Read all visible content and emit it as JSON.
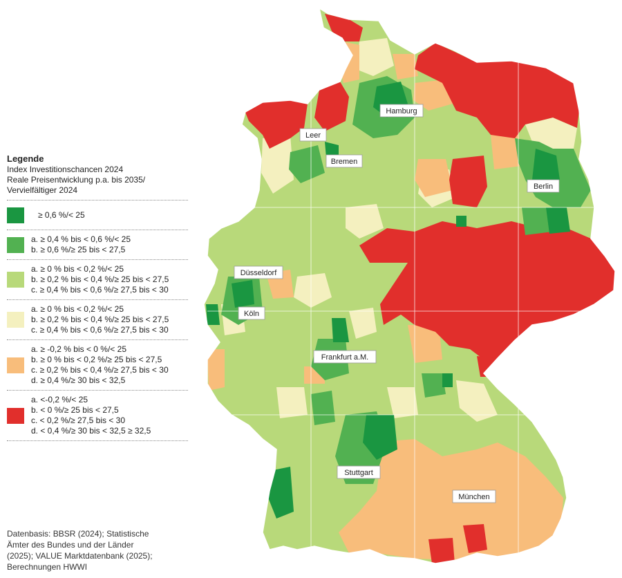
{
  "legend": {
    "heading": "Legende",
    "subtitle_lines": [
      "Index Investitionschancen 2024",
      "Reale Preisentwicklung p.a. bis 2035/",
      "Vervielfältiger 2024"
    ],
    "classes": [
      {
        "color": "#1a9641",
        "lines": [
          "≥ 0,6 %/< 25"
        ]
      },
      {
        "color": "#52b151",
        "lines": [
          "a. ≥ 0,4 % bis < 0,6 %/< 25",
          "b. ≥ 0,6 %/≥ 25 bis < 27,5"
        ]
      },
      {
        "color": "#b8d97a",
        "lines": [
          "a. ≥ 0 % bis < 0,2 %/< 25",
          "b. ≥ 0,2 % bis < 0,4 %/≥ 25 bis < 27,5",
          "c. ≥ 0,4 % bis < 0,6 %/≥ 27,5 bis < 30"
        ]
      },
      {
        "color": "#f4f0bf",
        "lines": [
          "a. ≥ 0 % bis < 0,2 %/< 25",
          "b. ≥ 0,2 % bis < 0,4 %/≥ 25 bis < 27,5",
          "c. ≥ 0,4 % bis < 0,6 %/≥ 27,5 bis < 30"
        ]
      },
      {
        "color": "#f8bd7b",
        "lines": [
          "a. ≥ -0,2 % bis < 0 %/< 25",
          "b. ≥ 0 % bis < 0,2 %/≥ 25 bis < 27,5",
          "c. ≥ 0,2 % bis < 0,4 %/≥ 27,5 bis < 30",
          "d. ≥ 0,4 %/≥ 30 bis < 32,5"
        ]
      },
      {
        "color": "#e12f2c",
        "lines": [
          "a. <-0,2 %/< 25",
          "b. < 0 %/≥ 25 bis < 27,5",
          "c. < 0,2 %/≥ 27,5 bis < 30",
          "d. < 0,4 %/≥ 30 bis < 32,5 ≥ 32,5"
        ]
      }
    ]
  },
  "cities": [
    {
      "name": "Hamburg"
    },
    {
      "name": "Leer"
    },
    {
      "name": "Bremen"
    },
    {
      "name": "Berlin"
    },
    {
      "name": "Düsseldorf"
    },
    {
      "name": "Köln"
    },
    {
      "name": "Frankfurt a.M."
    },
    {
      "name": "Stuttgart"
    },
    {
      "name": "München"
    }
  ],
  "source_lines": [
    "Datenbasis: BBSR (2024); Statistische",
    "Ämter des Bundes und der Länder",
    "(2025); VALUE Marktdatenbank (2025);",
    "Berechnungen HWWI"
  ]
}
